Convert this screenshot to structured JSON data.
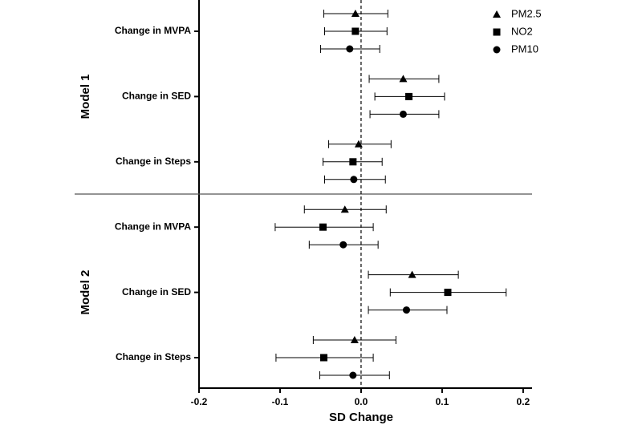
{
  "chart_data": {
    "type": "forest",
    "xlabel": "SD Change",
    "groups": [
      "Model 1",
      "Model 2"
    ],
    "categories": [
      "Change in MVPA",
      "Change in SED",
      "Change in Steps",
      "Change in MVPA",
      "Change in SED",
      "Change in Steps"
    ],
    "series": [
      {
        "name": "PM2.5",
        "marker": "triangle",
        "color": "#000000",
        "values": [
          -0.007,
          0.052,
          -0.003,
          -0.02,
          0.063,
          -0.008
        ],
        "lower": [
          -0.046,
          0.01,
          -0.04,
          -0.07,
          0.009,
          -0.059
        ],
        "upper": [
          0.033,
          0.096,
          0.037,
          0.031,
          0.12,
          0.043
        ]
      },
      {
        "name": "NO2",
        "marker": "square",
        "color": "#000000",
        "values": [
          -0.007,
          0.059,
          -0.01,
          -0.047,
          0.107,
          -0.046
        ],
        "lower": [
          -0.045,
          0.017,
          -0.047,
          -0.106,
          0.036,
          -0.105
        ],
        "upper": [
          0.032,
          0.103,
          0.026,
          0.015,
          0.179,
          0.015
        ]
      },
      {
        "name": "PM10",
        "marker": "circle",
        "color": "#000000",
        "values": [
          -0.014,
          0.052,
          -0.009,
          -0.022,
          0.056,
          -0.01
        ],
        "lower": [
          -0.05,
          0.011,
          -0.045,
          -0.064,
          0.009,
          -0.051
        ],
        "upper": [
          0.023,
          0.096,
          0.03,
          0.021,
          0.106,
          0.035
        ]
      }
    ],
    "xlim": [
      -0.2,
      0.211
    ],
    "xticks": [
      -0.2,
      -0.1,
      {
        "value": 0,
        "label": "0.0"
      },
      0.1,
      0.2
    ],
    "reference_line": 0,
    "legend": "upper right"
  }
}
